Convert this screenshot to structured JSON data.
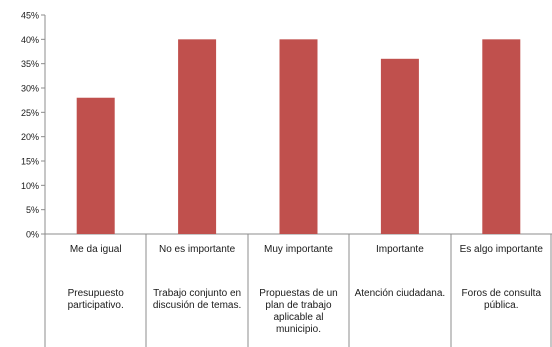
{
  "chart_data": {
    "type": "bar",
    "title": "",
    "xlabel": "",
    "ylabel": "",
    "ylim": [
      0,
      45
    ],
    "yticks": [
      "0%",
      "5%",
      "10%",
      "15%",
      "20%",
      "25%",
      "30%",
      "35%",
      "40%",
      "45%"
    ],
    "grid": false,
    "legend": "none",
    "bar_color": "#c0504d",
    "categories": [
      {
        "rating": "Me da igual",
        "item": "Presupuesto participativo."
      },
      {
        "rating": "No es importante",
        "item": "Trabajo conjunto en discusión de temas."
      },
      {
        "rating": "Muy importante",
        "item": "Propuestas de un plan de trabajo aplicable al municipio."
      },
      {
        "rating": "Importante",
        "item": "Atención ciudadana."
      },
      {
        "rating": "Es algo importante",
        "item": "Foros de consulta pública."
      }
    ],
    "values": [
      28,
      40,
      40,
      36,
      40
    ]
  }
}
